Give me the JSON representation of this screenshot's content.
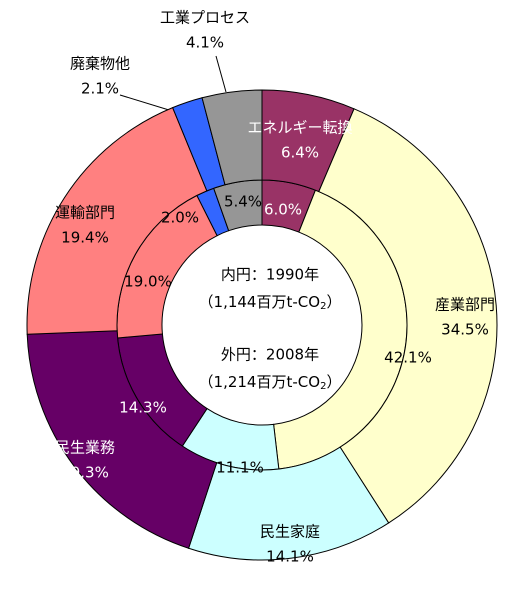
{
  "chart_data": {
    "type": "donut",
    "categories": [
      "エネルギー転換",
      "産業部門",
      "民生家庭",
      "民生業務",
      "運輸部門",
      "廃棄物他",
      "工業プロセス"
    ],
    "colors": [
      "#993366",
      "#FFFFCC",
      "#CCFFFF",
      "#660066",
      "#FF8080",
      "#3366FF",
      "#969696"
    ],
    "series": [
      {
        "name": "内円：1990年",
        "ring": "inner",
        "values": [
          6.0,
          42.1,
          11.1,
          14.3,
          19.0,
          2.0,
          5.4
        ],
        "value_labels": [
          "6.0%",
          "42.1%",
          "11.1%",
          "14.3%",
          "19.0%",
          "2.0%",
          "5.4%"
        ],
        "total_text": "（1,144百万t-CO",
        "total_sub": "2",
        "total_tail": "）"
      },
      {
        "name": "外円：2008年",
        "ring": "outer",
        "values": [
          6.4,
          34.5,
          14.1,
          19.3,
          19.4,
          2.1,
          4.1
        ],
        "value_labels": [
          "6.4%",
          "34.5%",
          "14.1%",
          "19.3%",
          "19.4%",
          "2.1%",
          "4.1%"
        ],
        "total_text": "（1,214百万t-CO",
        "total_sub": "2",
        "total_tail": "）"
      }
    ]
  }
}
